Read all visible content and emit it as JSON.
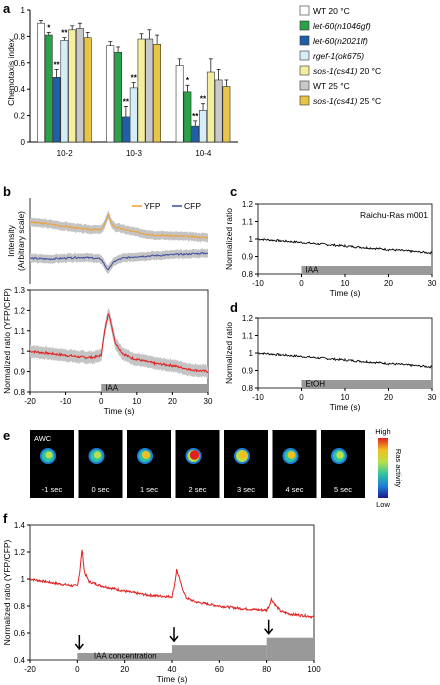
{
  "panels": {
    "a": "a",
    "b": "b",
    "c": "c",
    "d": "d",
    "e": "e",
    "f": "f"
  },
  "chart_data": [
    {
      "id": "a",
      "type": "bar",
      "ylabel": "Chemotaxis index",
      "ylim": [
        0,
        1.0
      ],
      "yticks": [
        "0",
        "0.2",
        "0.4",
        "0.6",
        "0.8",
        "1"
      ],
      "categories": [
        "10-2",
        "10-3",
        "10-4"
      ],
      "series": [
        {
          "name": "WT 20 °C",
          "color": "#ffffff",
          "values": [
            0.9,
            0.73,
            0.58
          ],
          "errors": [
            0.02,
            0.03,
            0.05
          ]
        },
        {
          "name": "let-60(n1046gf)",
          "italic": true,
          "color": "#2aa24a",
          "values": [
            0.81,
            0.68,
            0.38
          ],
          "errors": [
            0.02,
            0.04,
            0.05
          ]
        },
        {
          "name": "let-60(n2021lf)",
          "italic": true,
          "color": "#1f5fa8",
          "values": [
            0.49,
            0.19,
            0.12
          ],
          "errors": [
            0.06,
            0.08,
            0.04
          ]
        },
        {
          "name": "rgef-1(ok675)",
          "italic": true,
          "color": "#d6ecf8",
          "values": [
            0.77,
            0.41,
            0.24
          ],
          "errors": [
            0.02,
            0.04,
            0.05
          ]
        },
        {
          "name": "sos-1(cs41) 20 °C",
          "italic": true,
          "color": "#f3ef9e",
          "values": [
            0.85,
            0.78,
            0.53
          ],
          "errors": [
            0.03,
            0.04,
            0.1
          ]
        },
        {
          "name": "WT 25 °C",
          "color": "#c9c9c9",
          "values": [
            0.86,
            0.78,
            0.47
          ],
          "errors": [
            0.04,
            0.07,
            0.08
          ]
        },
        {
          "name": "sos-1(cs41) 25 °C",
          "italic": true,
          "color": "#e8c547",
          "values": [
            0.79,
            0.74,
            0.42
          ],
          "errors": [
            0.04,
            0.07,
            0.05
          ]
        }
      ],
      "annotations": [
        {
          "category": 0,
          "series": 1,
          "text": "*"
        },
        {
          "category": 0,
          "series": 2,
          "text": "**"
        },
        {
          "category": 0,
          "series": 3,
          "text": "**"
        },
        {
          "category": 1,
          "series": 2,
          "text": "**"
        },
        {
          "category": 1,
          "series": 3,
          "text": "**"
        },
        {
          "category": 2,
          "series": 1,
          "text": "*"
        },
        {
          "category": 2,
          "series": 2,
          "text": "**"
        },
        {
          "category": 2,
          "series": 3,
          "text": "**"
        }
      ]
    },
    {
      "id": "b_top",
      "type": "line",
      "ylabel": "Intensity\n(Arbitrary scale)",
      "xlim": [
        -20,
        30
      ],
      "series": [
        {
          "name": "YFP",
          "color": "#f0a030",
          "x": [
            -20,
            -15,
            -10,
            -5,
            0,
            1,
            2,
            3,
            4,
            6,
            10,
            15,
            20,
            25,
            30
          ],
          "y": [
            0.72,
            0.7,
            0.67,
            0.64,
            0.63,
            0.7,
            0.8,
            0.7,
            0.66,
            0.64,
            0.6,
            0.57,
            0.56,
            0.55,
            0.54
          ]
        },
        {
          "name": "CFP",
          "color": "#3a4aa0",
          "x": [
            -20,
            -15,
            -10,
            -5,
            0,
            1,
            2,
            3,
            4,
            6,
            10,
            15,
            20,
            25,
            30
          ],
          "y": [
            0.3,
            0.29,
            0.3,
            0.31,
            0.29,
            0.22,
            0.16,
            0.23,
            0.27,
            0.3,
            0.32,
            0.33,
            0.34,
            0.35,
            0.36
          ]
        }
      ]
    },
    {
      "id": "b_bottom",
      "type": "line",
      "xlabel": "Time (s)",
      "ylabel": "Normalized ratio (YFP/CFP)",
      "xlim": [
        -20,
        30
      ],
      "ylim": [
        0.8,
        1.3
      ],
      "yticks": [
        "0.8",
        "0.9",
        "1",
        "1.1",
        "1.2",
        "1.3"
      ],
      "xticks": [
        "-20",
        "-10",
        "0",
        "10",
        "20",
        "30"
      ],
      "stimulus": {
        "label": "IAA",
        "start": 0,
        "end": 30
      },
      "series": [
        {
          "name": "ratio",
          "color": "#e02020",
          "x": [
            -20,
            -15,
            -10,
            -5,
            -2,
            0,
            1,
            2,
            3,
            4,
            6,
            8,
            10,
            15,
            20,
            25,
            30
          ],
          "y": [
            1.0,
            0.99,
            0.98,
            0.97,
            0.97,
            0.98,
            1.1,
            1.19,
            1.12,
            1.04,
            0.99,
            0.97,
            0.96,
            0.94,
            0.93,
            0.91,
            0.9
          ]
        }
      ]
    },
    {
      "id": "c",
      "type": "line",
      "title": "Raichu-Ras m001",
      "xlabel": "Time (s)",
      "ylabel": "Normalized ratio",
      "xlim": [
        -10,
        30
      ],
      "ylim": [
        0.8,
        1.2
      ],
      "yticks": [
        "0.8",
        "0.9",
        "1",
        "1.1",
        "1.2"
      ],
      "xticks": [
        "-10",
        "0",
        "10",
        "20",
        "30"
      ],
      "stimulus": {
        "label": "IAA",
        "start": 0,
        "end": 30
      },
      "series": [
        {
          "name": "ratio",
          "color": "#000000",
          "x": [
            -10,
            -5,
            0,
            5,
            10,
            15,
            20,
            25,
            30
          ],
          "y": [
            1.0,
            0.99,
            0.98,
            0.97,
            0.96,
            0.95,
            0.94,
            0.93,
            0.92
          ]
        }
      ]
    },
    {
      "id": "d",
      "type": "line",
      "xlabel": "Time (s)",
      "ylabel": "Normalized ratio",
      "xlim": [
        -10,
        30
      ],
      "ylim": [
        0.8,
        1.2
      ],
      "yticks": [
        "0.8",
        "0.9",
        "1",
        "1.1",
        "1.2"
      ],
      "xticks": [
        "-10",
        "0",
        "10",
        "20",
        "30"
      ],
      "stimulus": {
        "label": "EtOH",
        "start": 0,
        "end": 30
      },
      "series": [
        {
          "name": "ratio",
          "color": "#000000",
          "x": [
            -10,
            -5,
            0,
            5,
            10,
            15,
            20,
            25,
            30
          ],
          "y": [
            1.0,
            0.99,
            0.98,
            0.97,
            0.96,
            0.95,
            0.94,
            0.93,
            0.92
          ]
        }
      ]
    },
    {
      "id": "f",
      "type": "line",
      "xlabel": "Time (s)",
      "ylabel": "Normalized ratio (YFP/CFP)",
      "xlim": [
        -20,
        100
      ],
      "ylim": [
        0.4,
        1.4
      ],
      "yticks": [
        "0.4",
        "0.6",
        "0.8",
        "1",
        "1.2",
        "1.4"
      ],
      "xticks": [
        "-20",
        "0",
        "20",
        "40",
        "60",
        "80",
        "100"
      ],
      "stimulus": {
        "label": "IAA concentration",
        "steps": [
          {
            "start": 0,
            "end": 40,
            "level": 1
          },
          {
            "start": 40,
            "end": 80,
            "level": 2
          },
          {
            "start": 80,
            "end": 100,
            "level": 3
          }
        ]
      },
      "series": [
        {
          "name": "ratio",
          "color": "#e02020",
          "x": [
            -20,
            -10,
            -2,
            0,
            1,
            2,
            3,
            5,
            10,
            20,
            30,
            38,
            40,
            41,
            42,
            44,
            46,
            50,
            60,
            70,
            78,
            80,
            81,
            82,
            84,
            86,
            90,
            100
          ],
          "y": [
            1.0,
            0.97,
            0.95,
            0.95,
            1.05,
            1.22,
            1.05,
            0.98,
            0.95,
            0.91,
            0.88,
            0.87,
            0.87,
            0.95,
            1.07,
            0.95,
            0.86,
            0.83,
            0.8,
            0.78,
            0.77,
            0.77,
            0.8,
            0.85,
            0.8,
            0.76,
            0.74,
            0.72
          ]
        }
      ]
    }
  ],
  "panel_e": {
    "label": "AWC",
    "frames": [
      "-1 sec",
      "0 sec",
      "1 sec",
      "2 sec",
      "3 sec",
      "4 sec",
      "5 sec"
    ],
    "frame_intensity": [
      0.25,
      0.3,
      0.5,
      0.85,
      0.65,
      0.45,
      0.35
    ],
    "colorbar_high": "High",
    "colorbar_low": "Low",
    "colorbar_title": "Ras activity"
  }
}
